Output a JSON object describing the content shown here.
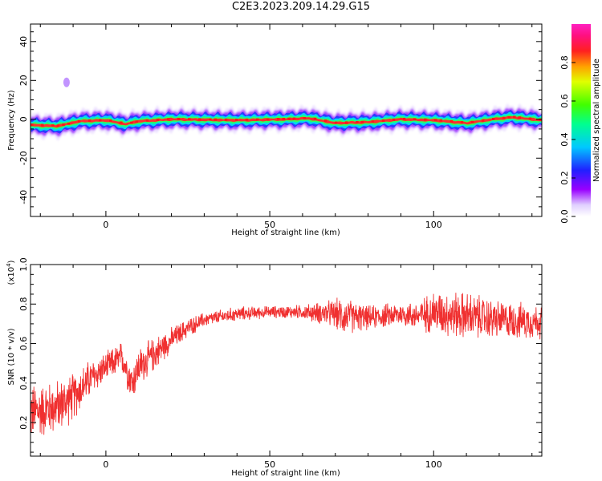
{
  "title": "C2E3.2023.209.14.29.G15",
  "chart_data": [
    {
      "type": "heatmap",
      "xlabel": "Height of straight line (km)",
      "ylabel": "Frequency (Hz)",
      "xlim": [
        -23,
        133
      ],
      "ylim": [
        -50,
        49
      ],
      "xticks": [
        0,
        50,
        100
      ],
      "yticks": [
        -40,
        -20,
        0,
        20,
        40
      ],
      "colorbar": {
        "label": "Normalized spectral amplitude",
        "range": [
          0,
          1
        ],
        "ticks": [
          0.0,
          0.2,
          0.4,
          0.6,
          0.8
        ],
        "colormap": "rainbow (violet-blue-cyan-green-yellow-red-magenta)"
      },
      "band": {
        "center_hz": [
          [
            -23,
            -3
          ],
          [
            -15,
            -3.5
          ],
          [
            -12,
            -2.5
          ],
          [
            -8,
            -1
          ],
          [
            0,
            -0.5
          ],
          [
            6,
            -2.5
          ],
          [
            10,
            -1
          ],
          [
            20,
            0
          ],
          [
            40,
            -0.5
          ],
          [
            55,
            0
          ],
          [
            62,
            0.5
          ],
          [
            70,
            -2
          ],
          [
            80,
            -1.5
          ],
          [
            90,
            0
          ],
          [
            100,
            -0.5
          ],
          [
            110,
            -2
          ],
          [
            118,
            0
          ],
          [
            124,
            1
          ],
          [
            133,
            -0.5
          ]
        ],
        "half_width_hz": 3,
        "outlier_blob": {
          "x": -12,
          "y": 19
        }
      }
    },
    {
      "type": "line",
      "xlabel": "Height of straight line (km)",
      "ylabel": "SNR (10 * v/v)",
      "y_multiplier": "(x10",
      "y_multiplier_exp": "4",
      "y_multiplier_close": ")",
      "xlim": [
        -23,
        133
      ],
      "ylim": [
        0.03,
        1.0
      ],
      "xticks": [
        0,
        50,
        100
      ],
      "yticks": [
        0.2,
        0.4,
        0.6,
        0.8,
        1.0
      ],
      "color": "#f03030",
      "envelope": {
        "x": [
          -23,
          -15,
          -10,
          -5,
          0,
          5,
          8,
          10,
          15,
          20,
          25,
          30,
          40,
          50,
          60,
          70,
          72,
          80,
          90,
          95,
          100,
          110,
          120,
          133
        ],
        "mean": [
          0.25,
          0.28,
          0.33,
          0.42,
          0.48,
          0.53,
          0.4,
          0.48,
          0.55,
          0.62,
          0.68,
          0.72,
          0.75,
          0.76,
          0.76,
          0.75,
          0.74,
          0.73,
          0.75,
          0.74,
          0.76,
          0.74,
          0.72,
          0.71
        ],
        "spread": [
          0.12,
          0.11,
          0.1,
          0.08,
          0.06,
          0.07,
          0.08,
          0.08,
          0.07,
          0.05,
          0.04,
          0.03,
          0.03,
          0.025,
          0.03,
          0.06,
          0.08,
          0.05,
          0.05,
          0.06,
          0.09,
          0.1,
          0.08,
          0.07
        ]
      }
    }
  ]
}
